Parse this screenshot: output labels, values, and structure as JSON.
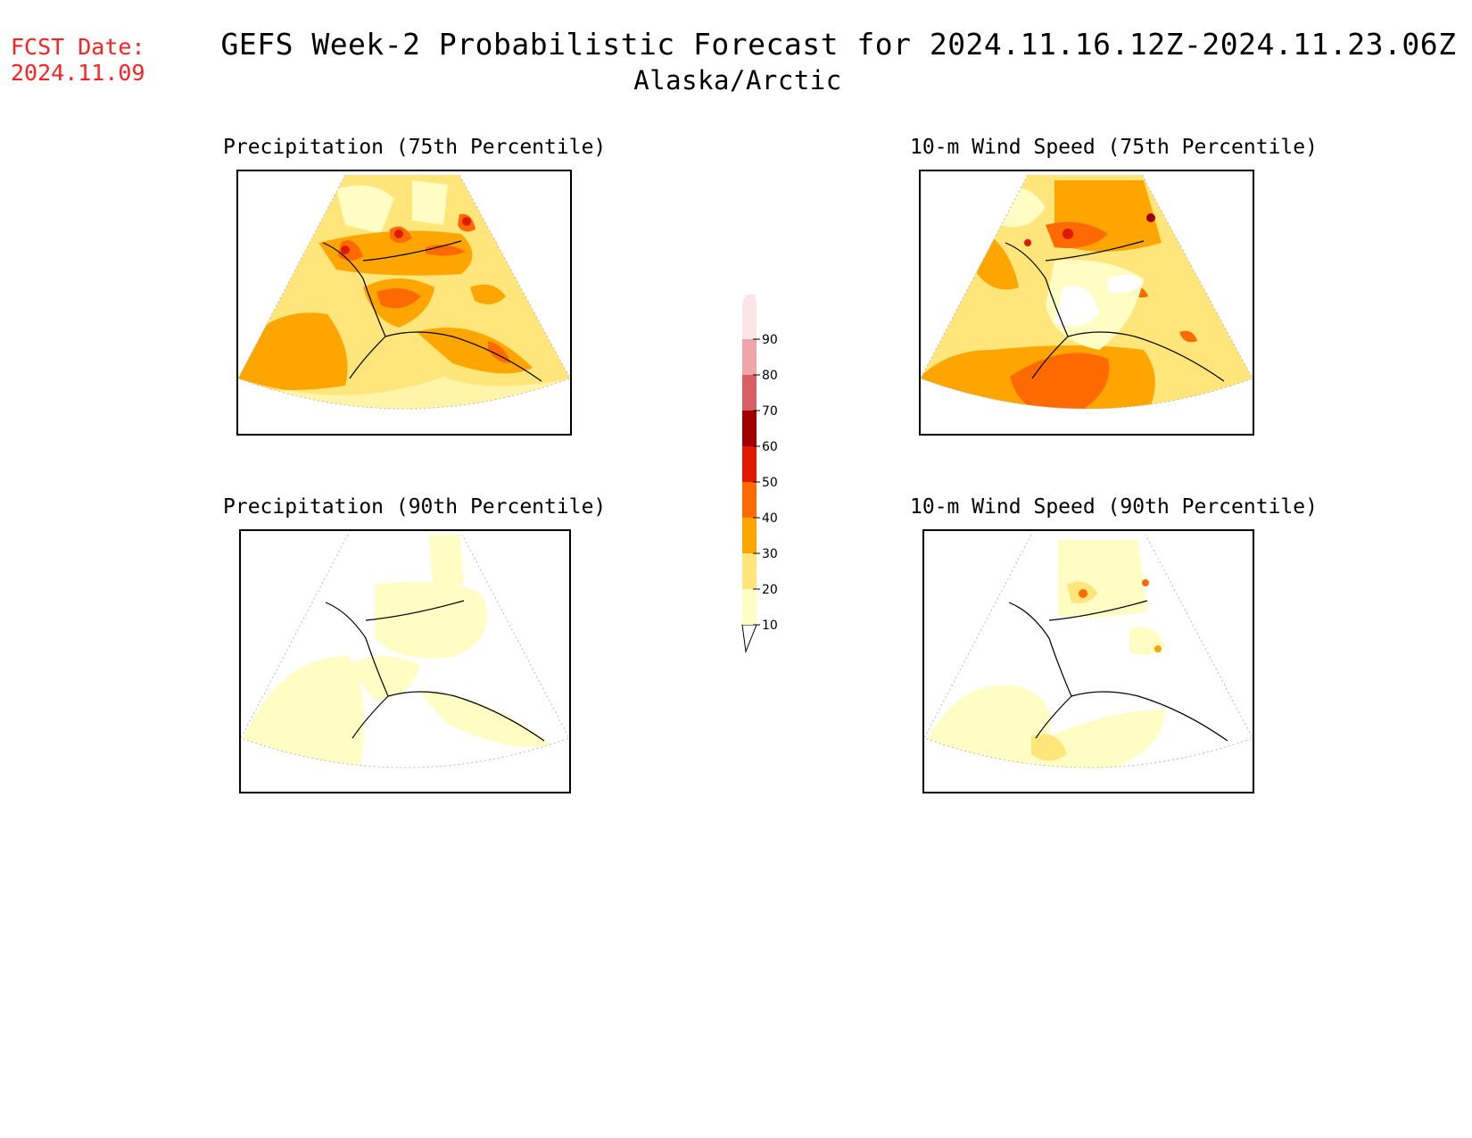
{
  "fcst": {
    "label": "FCST Date:",
    "date": "2024.11.09"
  },
  "header": {
    "title": "GEFS Week-2 Probabilistic Forecast for 2024.11.16.12Z-2024.11.23.06Z",
    "region": "Alaska/Arctic"
  },
  "panels": [
    {
      "title": "Precipitation (75th Percentile)"
    },
    {
      "title": "10-m Wind Speed (75th Percentile)"
    },
    {
      "title": "Precipitation (90th Percentile)"
    },
    {
      "title": "10-m Wind Speed (90th Percentile)"
    }
  ],
  "colorbar": {
    "levels": [
      "10",
      "20",
      "30",
      "40",
      "50",
      "60",
      "70",
      "80",
      "90"
    ],
    "colors": [
      "#fffdc4",
      "#ffe57a",
      "#ffa500",
      "#ff6a00",
      "#e01a00",
      "#a00000",
      "#d85f64",
      "#f2a5a8",
      "#fde4e6"
    ]
  }
}
